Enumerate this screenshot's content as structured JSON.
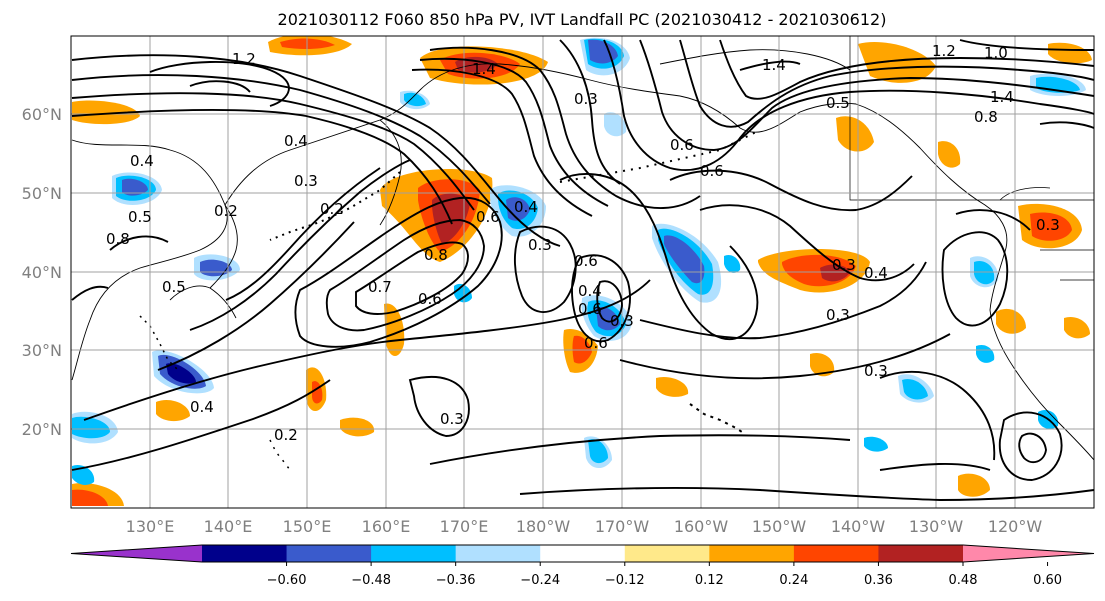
{
  "title": "2021030112 F060 850 hPa PV, IVT Landfall PC (2021030412 - 2021030612)",
  "map": {
    "lon_labels": [
      "130°E",
      "140°E",
      "150°E",
      "160°E",
      "170°E",
      "180°W",
      "170°W",
      "160°W",
      "150°W",
      "140°W",
      "130°W",
      "120°W"
    ],
    "lat_labels": [
      "60°N",
      "50°N",
      "40°N",
      "30°N",
      "20°N"
    ],
    "gridline_color": "#a0a0a0",
    "contour_labels": [
      "1.4",
      "1.4",
      "1.2",
      "1.2",
      "1.0",
      "1.4",
      "0.5",
      "0.8",
      "0.6",
      "0.6",
      "0.4",
      "0.3",
      "0.2",
      "0.8",
      "0.5",
      "0.4",
      "0.3",
      "0.5",
      "0.6",
      "0.8",
      "0.7",
      "0.6",
      "0.3",
      "0.4",
      "0.2",
      "0.3",
      "0.6",
      "0.6",
      "0.4",
      "0.3",
      "0.6",
      "0.3",
      "0.4",
      "0.3",
      "0.3",
      "0.2",
      "0.3",
      "0.4"
    ]
  },
  "colorbar": {
    "colors": [
      "#9932cc",
      "#00008b",
      "#3a5bcc",
      "#00bfff",
      "#b0e0ff",
      "#ffffff",
      "#ffe98a",
      "#ffa500",
      "#ff4500",
      "#b22222",
      "#ff88aa"
    ],
    "tick_labels": [
      "−0.60",
      "−0.48",
      "−0.36",
      "−0.24",
      "−0.12",
      "0.12",
      "0.24",
      "0.36",
      "0.48",
      "0.60"
    ]
  }
}
